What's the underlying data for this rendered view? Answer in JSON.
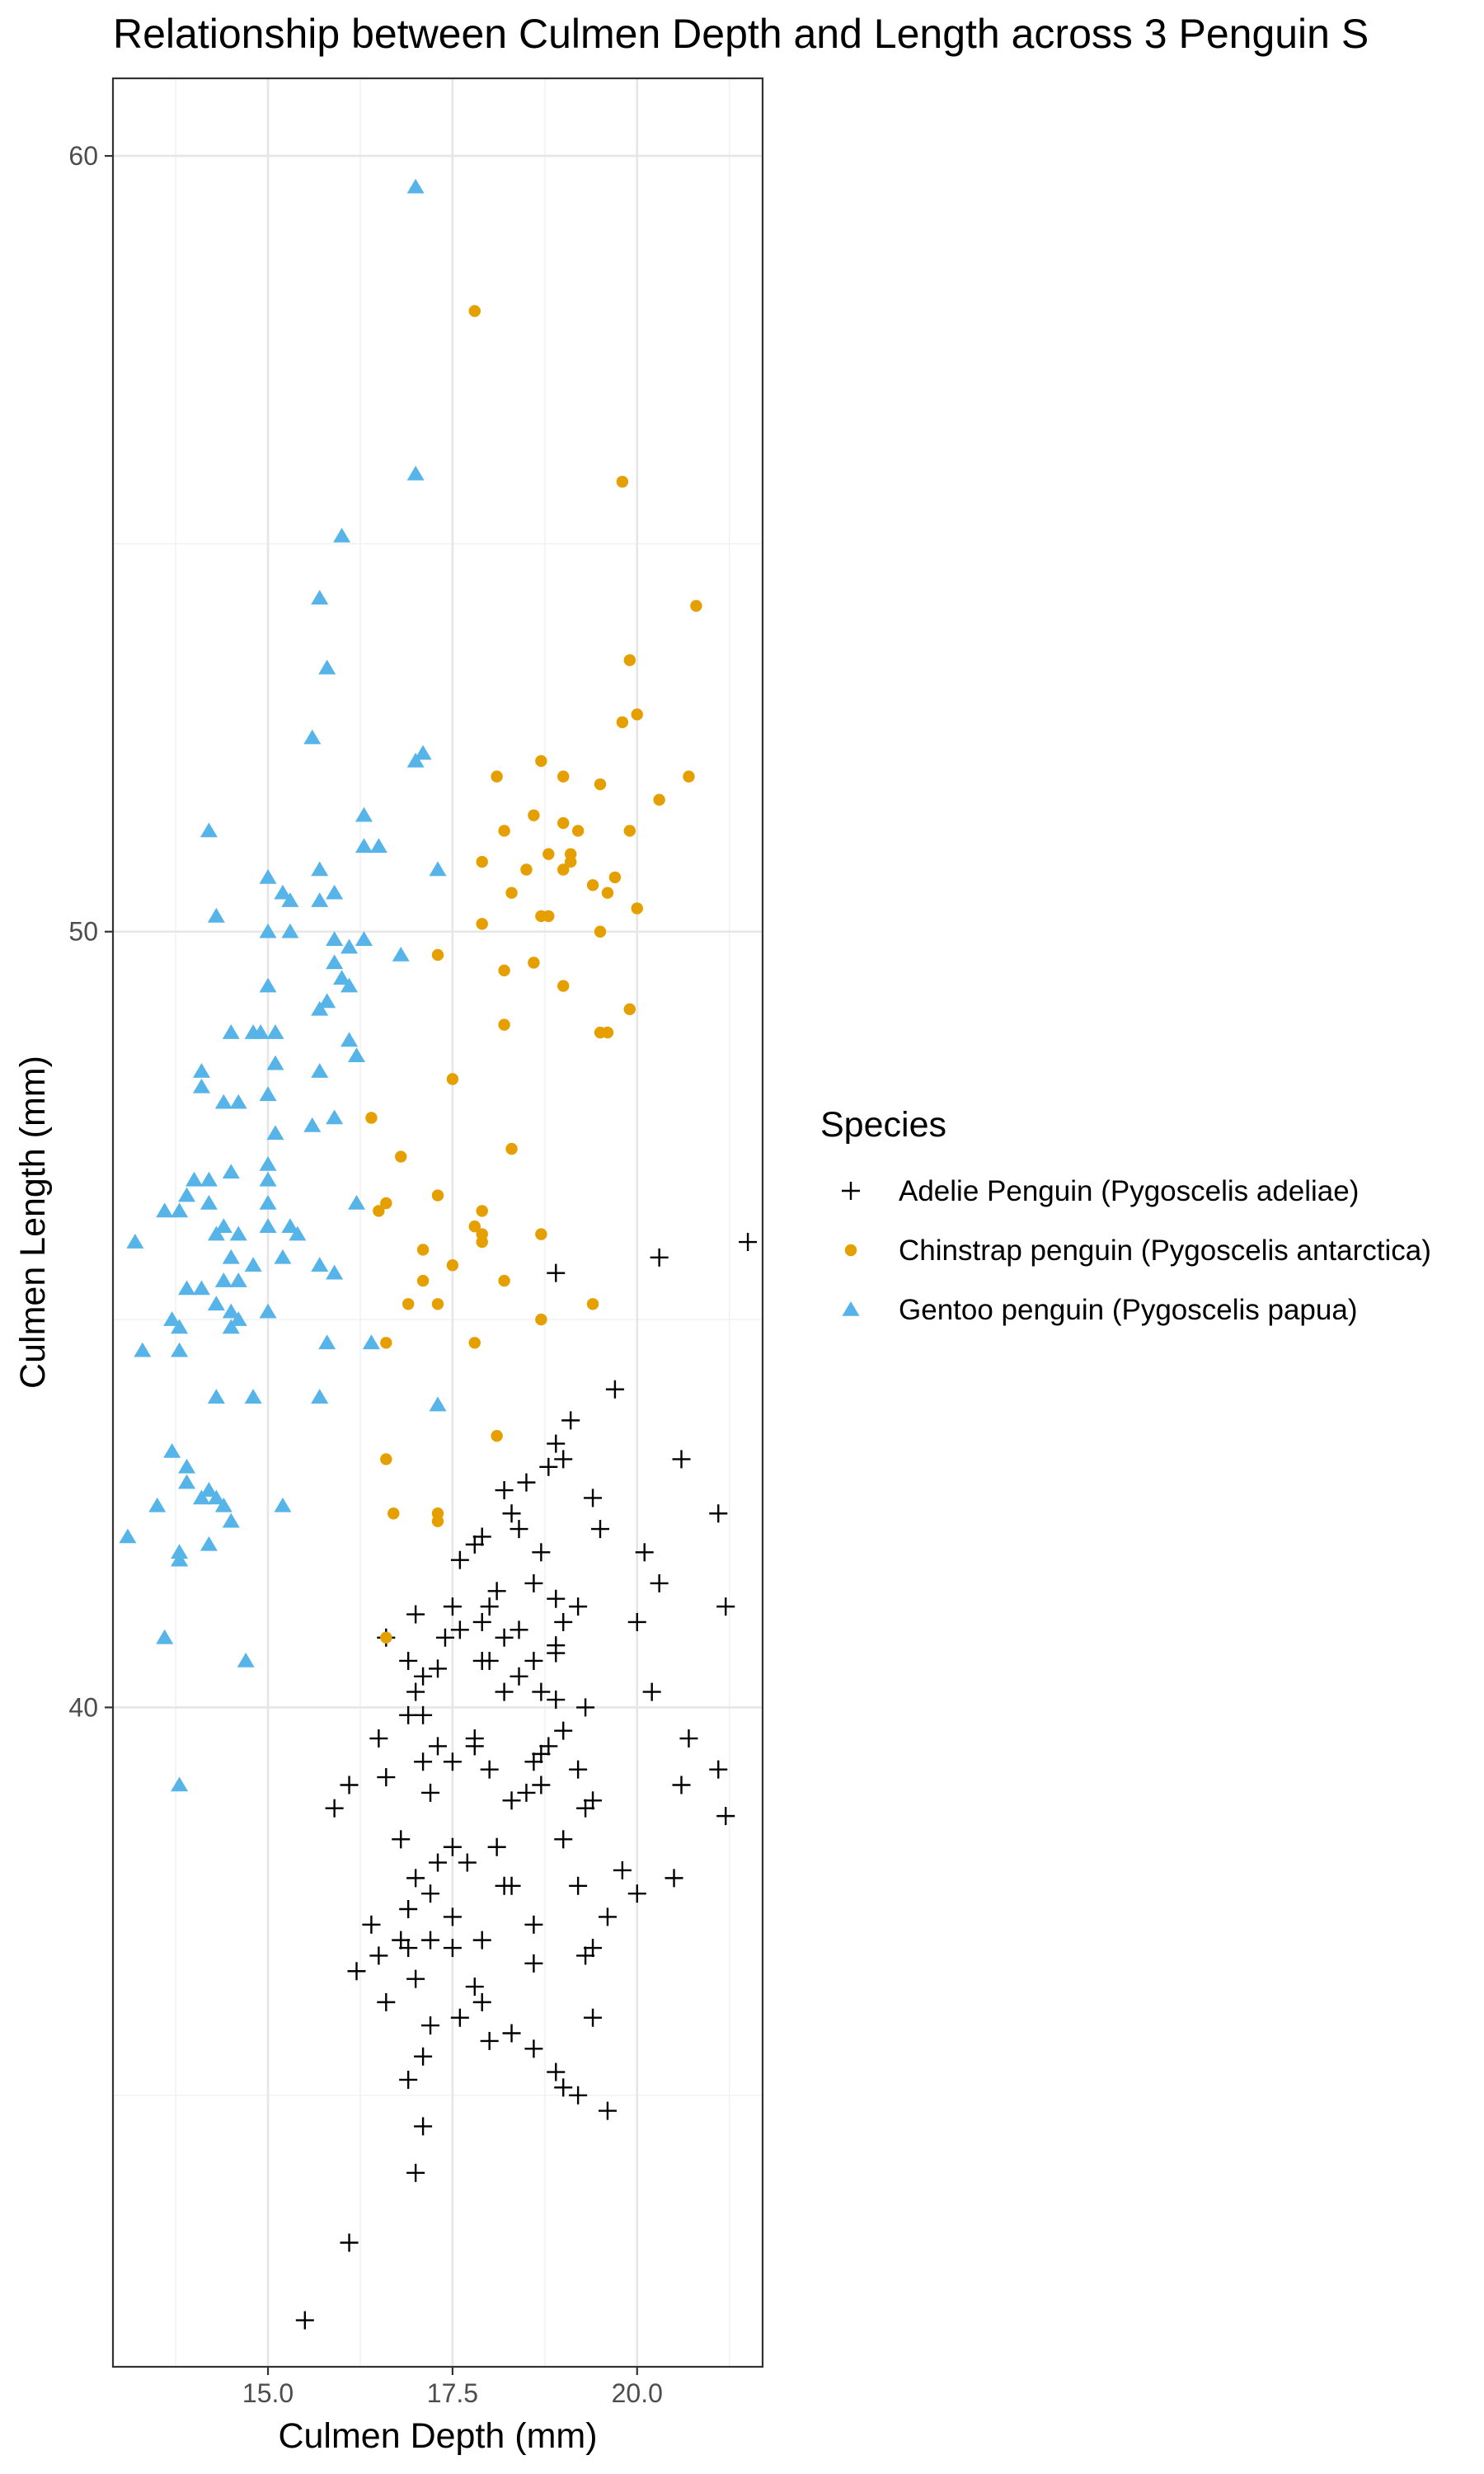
{
  "chart_data": {
    "type": "scatter",
    "title": "Relationship between Culmen Depth and Length across 3 Penguin S",
    "xlabel": "Culmen Depth (mm)",
    "ylabel": "Culmen Length (mm)",
    "xlim": [
      12.9,
      21.7
    ],
    "ylim": [
      31.5,
      61.0
    ],
    "x_ticks": [
      15.0,
      17.5,
      20.0
    ],
    "x_tick_labels": [
      "15.0",
      "17.5",
      "20.0"
    ],
    "y_ticks": [
      40,
      50,
      60
    ],
    "y_tick_labels": [
      "40",
      "50",
      "60"
    ],
    "grid": true,
    "legend_title": "Species",
    "legend_position": "right",
    "series": [
      {
        "name": "Adelie Penguin (Pygoscelis adeliae)",
        "marker": "plus",
        "color": "#000000",
        "points": [
          [
            15.5,
            32.1
          ],
          [
            16.1,
            33.1
          ],
          [
            17.1,
            34.6
          ],
          [
            16.9,
            35.2
          ],
          [
            17.1,
            35.5
          ],
          [
            18.0,
            35.7
          ],
          [
            17.2,
            35.9
          ],
          [
            18.6,
            36.7
          ],
          [
            18.3,
            37.7
          ],
          [
            17.7,
            38.0
          ],
          [
            17.5,
            38.2
          ],
          [
            15.9,
            38.7
          ],
          [
            16.5,
            39.6
          ],
          [
            17.0,
            40.2
          ],
          [
            17.3,
            40.5
          ],
          [
            17.4,
            40.9
          ],
          [
            17.6,
            41.0
          ],
          [
            17.9,
            41.1
          ],
          [
            18.0,
            41.3
          ],
          [
            17.6,
            41.9
          ],
          [
            17.8,
            42.1
          ],
          [
            17.9,
            42.2
          ],
          [
            18.4,
            42.3
          ],
          [
            18.3,
            42.5
          ],
          [
            18.2,
            42.8
          ],
          [
            18.5,
            42.9
          ],
          [
            18.8,
            43.1
          ],
          [
            19.0,
            43.2
          ],
          [
            18.9,
            43.4
          ],
          [
            19.1,
            43.7
          ],
          [
            19.7,
            44.1
          ],
          [
            18.9,
            45.6
          ],
          [
            20.3,
            45.8
          ],
          [
            21.5,
            46.0
          ],
          [
            17.0,
            37.8
          ],
          [
            16.9,
            37.4
          ],
          [
            17.2,
            37.6
          ],
          [
            17.5,
            37.3
          ],
          [
            18.2,
            37.7
          ],
          [
            18.6,
            37.2
          ],
          [
            19.4,
            36.9
          ],
          [
            19.2,
            37.7
          ],
          [
            19.8,
            37.9
          ],
          [
            19.0,
            38.3
          ],
          [
            18.5,
            38.9
          ],
          [
            18.7,
            39.0
          ],
          [
            18.6,
            39.3
          ],
          [
            18.8,
            39.5
          ],
          [
            19.2,
            39.2
          ],
          [
            19.4,
            38.8
          ],
          [
            19.0,
            39.7
          ],
          [
            18.9,
            40.1
          ],
          [
            18.4,
            40.4
          ],
          [
            18.6,
            40.6
          ],
          [
            18.9,
            40.8
          ],
          [
            19.0,
            41.1
          ],
          [
            18.0,
            40.6
          ],
          [
            18.2,
            40.9
          ],
          [
            19.2,
            41.3
          ],
          [
            18.1,
            41.5
          ],
          [
            18.6,
            41.6
          ],
          [
            18.9,
            41.4
          ],
          [
            18.7,
            42.0
          ],
          [
            19.4,
            42.7
          ],
          [
            20.1,
            42.0
          ],
          [
            20.3,
            41.6
          ],
          [
            20.6,
            43.2
          ],
          [
            21.1,
            42.5
          ],
          [
            21.2,
            41.3
          ],
          [
            19.5,
            42.3
          ],
          [
            20.0,
            41.1
          ],
          [
            20.2,
            40.2
          ],
          [
            20.7,
            39.6
          ],
          [
            21.1,
            39.2
          ],
          [
            21.2,
            38.6
          ],
          [
            20.6,
            39.0
          ],
          [
            20.5,
            37.8
          ],
          [
            20.0,
            37.6
          ],
          [
            19.6,
            37.3
          ],
          [
            19.3,
            36.8
          ],
          [
            19.4,
            36.0
          ],
          [
            19.6,
            34.8
          ],
          [
            19.2,
            35.0
          ],
          [
            18.9,
            35.3
          ],
          [
            18.6,
            35.6
          ],
          [
            18.3,
            35.8
          ],
          [
            17.9,
            36.2
          ],
          [
            17.8,
            36.4
          ],
          [
            17.6,
            36.0
          ],
          [
            16.6,
            36.2
          ],
          [
            16.5,
            36.8
          ],
          [
            16.8,
            37.0
          ],
          [
            16.2,
            36.6
          ],
          [
            16.6,
            39.1
          ],
          [
            16.8,
            38.3
          ],
          [
            17.2,
            38.9
          ],
          [
            17.3,
            38.0
          ],
          [
            17.1,
            39.3
          ],
          [
            17.3,
            39.5
          ],
          [
            17.5,
            39.3
          ],
          [
            17.8,
            39.5
          ],
          [
            17.8,
            39.6
          ],
          [
            18.0,
            39.2
          ],
          [
            18.3,
            38.8
          ],
          [
            18.7,
            39.4
          ],
          [
            18.1,
            38.2
          ],
          [
            17.9,
            37.0
          ],
          [
            17.5,
            36.9
          ],
          [
            17.0,
            36.5
          ],
          [
            16.9,
            36.9
          ],
          [
            16.4,
            37.2
          ],
          [
            16.1,
            39.0
          ],
          [
            17.2,
            37.0
          ],
          [
            17.0,
            34.0
          ],
          [
            16.6,
            40.9
          ],
          [
            16.9,
            40.6
          ],
          [
            17.1,
            40.4
          ],
          [
            17.9,
            40.6
          ],
          [
            17.5,
            41.3
          ],
          [
            18.4,
            41.0
          ],
          [
            16.9,
            39.9
          ],
          [
            17.1,
            39.9
          ],
          [
            17.0,
            41.2
          ],
          [
            18.7,
            40.2
          ],
          [
            18.9,
            40.7
          ],
          [
            19.0,
            35.1
          ],
          [
            19.3,
            38.7
          ],
          [
            18.2,
            40.2
          ],
          [
            19.3,
            40.0
          ]
        ]
      },
      {
        "name": "Chinstrap penguin (Pygoscelis antarctica)",
        "marker": "circle",
        "color": "#E69F00",
        "points": [
          [
            17.8,
            58.0
          ],
          [
            19.8,
            55.8
          ],
          [
            20.8,
            54.2
          ],
          [
            19.9,
            53.5
          ],
          [
            20.0,
            52.8
          ],
          [
            19.8,
            52.7
          ],
          [
            18.7,
            52.2
          ],
          [
            18.1,
            52.0
          ],
          [
            19.0,
            52.0
          ],
          [
            19.5,
            51.9
          ],
          [
            20.7,
            52.0
          ],
          [
            20.3,
            51.7
          ],
          [
            18.6,
            51.5
          ],
          [
            19.9,
            51.3
          ],
          [
            18.2,
            51.3
          ],
          [
            19.2,
            51.3
          ],
          [
            19.0,
            51.4
          ],
          [
            18.8,
            51.0
          ],
          [
            18.5,
            50.8
          ],
          [
            19.1,
            50.9
          ],
          [
            17.9,
            50.9
          ],
          [
            19.7,
            50.7
          ],
          [
            19.0,
            50.8
          ],
          [
            19.4,
            50.6
          ],
          [
            19.6,
            50.5
          ],
          [
            18.3,
            50.5
          ],
          [
            20.0,
            50.3
          ],
          [
            18.7,
            50.2
          ],
          [
            18.8,
            50.2
          ],
          [
            17.9,
            50.1
          ],
          [
            19.5,
            50.0
          ],
          [
            17.3,
            49.7
          ],
          [
            18.6,
            49.6
          ],
          [
            18.2,
            49.5
          ],
          [
            19.0,
            49.3
          ],
          [
            19.9,
            49.0
          ],
          [
            18.2,
            48.8
          ],
          [
            19.5,
            48.7
          ],
          [
            19.6,
            48.7
          ],
          [
            17.5,
            48.1
          ],
          [
            16.4,
            47.6
          ],
          [
            16.8,
            47.1
          ],
          [
            18.3,
            47.2
          ],
          [
            17.3,
            46.6
          ],
          [
            16.6,
            46.5
          ],
          [
            16.5,
            46.4
          ],
          [
            17.9,
            46.4
          ],
          [
            17.8,
            46.2
          ],
          [
            17.9,
            46.1
          ],
          [
            18.7,
            46.1
          ],
          [
            17.1,
            45.9
          ],
          [
            17.5,
            45.7
          ],
          [
            18.2,
            45.5
          ],
          [
            16.9,
            45.2
          ],
          [
            17.3,
            45.2
          ],
          [
            17.1,
            45.5
          ],
          [
            19.4,
            45.2
          ],
          [
            18.7,
            45.0
          ],
          [
            16.6,
            44.7
          ],
          [
            17.8,
            44.7
          ],
          [
            18.1,
            43.5
          ],
          [
            16.6,
            43.2
          ],
          [
            16.7,
            42.5
          ],
          [
            17.3,
            42.5
          ],
          [
            17.3,
            42.4
          ],
          [
            16.6,
            40.9
          ],
          [
            17.9,
            46.0
          ],
          [
            19.1,
            51.0
          ]
        ]
      },
      {
        "name": "Gentoo penguin (Pygoscelis papua)",
        "marker": "triangle",
        "color": "#56B4E9",
        "points": [
          [
            17.0,
            59.6
          ],
          [
            17.0,
            55.9
          ],
          [
            16.0,
            55.1
          ],
          [
            15.7,
            54.3
          ],
          [
            15.8,
            53.4
          ],
          [
            15.6,
            52.5
          ],
          [
            17.0,
            52.2
          ],
          [
            17.1,
            52.3
          ],
          [
            16.3,
            51.5
          ],
          [
            16.3,
            51.1
          ],
          [
            16.5,
            51.1
          ],
          [
            14.2,
            51.3
          ],
          [
            17.3,
            50.8
          ],
          [
            15.7,
            50.8
          ],
          [
            15.0,
            50.7
          ],
          [
            15.2,
            50.5
          ],
          [
            15.3,
            50.4
          ],
          [
            15.9,
            50.5
          ],
          [
            15.7,
            50.4
          ],
          [
            14.3,
            50.2
          ],
          [
            15.0,
            50.0
          ],
          [
            15.3,
            50.0
          ],
          [
            15.9,
            49.9
          ],
          [
            16.1,
            49.8
          ],
          [
            16.3,
            49.9
          ],
          [
            16.8,
            49.7
          ],
          [
            15.9,
            49.6
          ],
          [
            16.0,
            49.4
          ],
          [
            16.1,
            49.3
          ],
          [
            15.0,
            49.3
          ],
          [
            15.8,
            49.1
          ],
          [
            15.7,
            49.0
          ],
          [
            14.5,
            48.7
          ],
          [
            14.8,
            48.7
          ],
          [
            15.1,
            48.7
          ],
          [
            14.9,
            48.7
          ],
          [
            16.1,
            48.6
          ],
          [
            16.2,
            48.4
          ],
          [
            15.1,
            48.3
          ],
          [
            15.7,
            48.2
          ],
          [
            14.1,
            48.2
          ],
          [
            14.1,
            48.0
          ],
          [
            15.0,
            47.9
          ],
          [
            14.4,
            47.8
          ],
          [
            14.6,
            47.8
          ],
          [
            15.9,
            47.6
          ],
          [
            15.6,
            47.5
          ],
          [
            15.1,
            47.4
          ],
          [
            15.0,
            47.0
          ],
          [
            14.0,
            46.8
          ],
          [
            14.2,
            46.8
          ],
          [
            14.5,
            46.9
          ],
          [
            15.0,
            46.8
          ],
          [
            13.9,
            46.6
          ],
          [
            13.8,
            46.4
          ],
          [
            15.0,
            46.5
          ],
          [
            16.2,
            46.5
          ],
          [
            15.4,
            46.1
          ],
          [
            15.3,
            46.2
          ],
          [
            14.3,
            46.1
          ],
          [
            14.5,
            45.8
          ],
          [
            14.6,
            45.5
          ],
          [
            14.4,
            45.5
          ],
          [
            14.3,
            45.2
          ],
          [
            14.1,
            45.4
          ],
          [
            15.0,
            46.2
          ],
          [
            15.7,
            45.7
          ],
          [
            15.9,
            45.6
          ],
          [
            13.6,
            46.4
          ],
          [
            14.6,
            46.1
          ],
          [
            14.8,
            45.7
          ],
          [
            15.2,
            45.8
          ],
          [
            13.2,
            46.0
          ],
          [
            14.4,
            46.2
          ],
          [
            14.2,
            46.5
          ],
          [
            13.9,
            45.4
          ],
          [
            13.7,
            45.0
          ],
          [
            13.8,
            44.9
          ],
          [
            14.5,
            44.9
          ],
          [
            15.0,
            45.1
          ],
          [
            14.6,
            45.0
          ],
          [
            13.8,
            44.6
          ],
          [
            13.3,
            44.6
          ],
          [
            15.8,
            44.7
          ],
          [
            16.4,
            44.7
          ],
          [
            14.5,
            45.1
          ],
          [
            14.3,
            44.0
          ],
          [
            14.8,
            44.0
          ],
          [
            15.7,
            44.0
          ],
          [
            17.3,
            43.9
          ],
          [
            13.7,
            43.3
          ],
          [
            13.9,
            43.1
          ],
          [
            13.9,
            42.9
          ],
          [
            14.2,
            42.8
          ],
          [
            14.3,
            42.7
          ],
          [
            14.4,
            42.6
          ],
          [
            14.5,
            42.4
          ],
          [
            13.5,
            42.6
          ],
          [
            13.8,
            41.9
          ],
          [
            14.1,
            42.7
          ],
          [
            15.2,
            42.6
          ],
          [
            13.1,
            42.2
          ],
          [
            14.2,
            42.1
          ],
          [
            13.8,
            42.0
          ],
          [
            13.8,
            41.9
          ],
          [
            13.6,
            40.9
          ],
          [
            14.7,
            40.6
          ],
          [
            13.8,
            39.0
          ]
        ]
      }
    ]
  }
}
